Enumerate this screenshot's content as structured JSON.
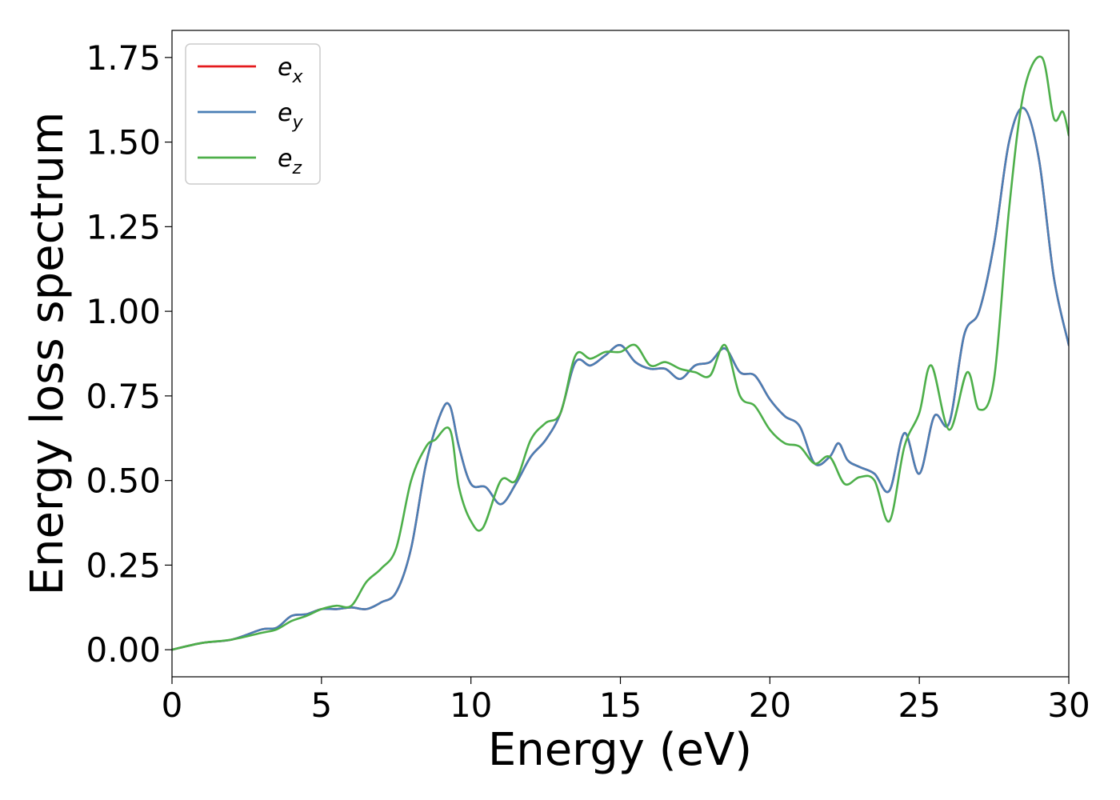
{
  "chart_data": {
    "type": "line",
    "title": "",
    "xlabel": "Energy (eV)",
    "ylabel": "Energy loss spectrum",
    "xlim": [
      0,
      30
    ],
    "ylim": [
      -0.08,
      1.83
    ],
    "xticks": [
      0,
      5,
      10,
      15,
      20,
      25,
      30
    ],
    "yticks": [
      0.0,
      0.25,
      0.5,
      0.75,
      1.0,
      1.25,
      1.5,
      1.75
    ],
    "grid": false,
    "legend": "top-left",
    "series": [
      {
        "name": "e",
        "sub": "x",
        "color": "#e41a1c",
        "x": [
          0,
          1,
          2,
          3,
          3.5,
          4,
          4.5,
          5,
          5.5,
          6,
          6.5,
          7,
          7.5,
          8,
          8.5,
          9,
          9.3,
          9.6,
          10,
          10.5,
          11,
          11.5,
          12,
          12.5,
          13,
          13.5,
          14,
          14.5,
          15,
          15.5,
          16,
          16.5,
          17,
          17.5,
          18,
          18.5,
          19,
          19.5,
          20,
          20.5,
          21,
          21.5,
          22,
          22.3,
          22.6,
          23,
          23.5,
          24,
          24.5,
          25,
          25.5,
          26,
          26.5,
          27,
          27.5,
          28,
          28.5,
          29,
          29.5,
          30
        ],
        "y": [
          0,
          0.02,
          0.03,
          0.06,
          0.065,
          0.1,
          0.105,
          0.12,
          0.12,
          0.125,
          0.12,
          0.14,
          0.17,
          0.3,
          0.55,
          0.7,
          0.72,
          0.6,
          0.49,
          0.48,
          0.43,
          0.49,
          0.57,
          0.62,
          0.7,
          0.85,
          0.84,
          0.87,
          0.9,
          0.85,
          0.83,
          0.83,
          0.8,
          0.84,
          0.85,
          0.89,
          0.82,
          0.81,
          0.74,
          0.69,
          0.66,
          0.55,
          0.57,
          0.61,
          0.56,
          0.54,
          0.52,
          0.47,
          0.64,
          0.52,
          0.69,
          0.67,
          0.93,
          1.0,
          1.2,
          1.5,
          1.6,
          1.45,
          1.1,
          0.9
        ]
      },
      {
        "name": "e",
        "sub": "y",
        "color": "#4a7fb5",
        "x": [
          0,
          1,
          2,
          3,
          3.5,
          4,
          4.5,
          5,
          5.5,
          6,
          6.5,
          7,
          7.5,
          8,
          8.5,
          9,
          9.3,
          9.6,
          10,
          10.5,
          11,
          11.5,
          12,
          12.5,
          13,
          13.5,
          14,
          14.5,
          15,
          15.5,
          16,
          16.5,
          17,
          17.5,
          18,
          18.5,
          19,
          19.5,
          20,
          20.5,
          21,
          21.5,
          22,
          22.3,
          22.6,
          23,
          23.5,
          24,
          24.5,
          25,
          25.5,
          26,
          26.5,
          27,
          27.5,
          28,
          28.5,
          29,
          29.5,
          30
        ],
        "y": [
          0,
          0.02,
          0.03,
          0.06,
          0.065,
          0.1,
          0.105,
          0.12,
          0.12,
          0.125,
          0.12,
          0.14,
          0.17,
          0.3,
          0.55,
          0.7,
          0.72,
          0.6,
          0.49,
          0.48,
          0.43,
          0.49,
          0.57,
          0.62,
          0.7,
          0.85,
          0.84,
          0.87,
          0.9,
          0.85,
          0.83,
          0.83,
          0.8,
          0.84,
          0.85,
          0.89,
          0.82,
          0.81,
          0.74,
          0.69,
          0.66,
          0.55,
          0.57,
          0.61,
          0.56,
          0.54,
          0.52,
          0.47,
          0.64,
          0.52,
          0.69,
          0.67,
          0.93,
          1.0,
          1.2,
          1.5,
          1.6,
          1.45,
          1.1,
          0.9
        ]
      },
      {
        "name": "e",
        "sub": "z",
        "color": "#4daf4a",
        "x": [
          0,
          1,
          2,
          3,
          3.5,
          4,
          4.5,
          5,
          5.5,
          6,
          6.5,
          7,
          7.5,
          8,
          8.5,
          8.8,
          9.3,
          9.6,
          10,
          10.4,
          11,
          11.5,
          12,
          12.5,
          13,
          13.5,
          14,
          14.5,
          15,
          15.5,
          16,
          16.5,
          17,
          17.5,
          18,
          18.5,
          19,
          19.5,
          20,
          20.5,
          21,
          21.5,
          22,
          22.5,
          23,
          23.5,
          24,
          24.5,
          25,
          25.4,
          26,
          26.6,
          27,
          27.5,
          28,
          28.5,
          29.1,
          29.5,
          29.8,
          30
        ],
        "y": [
          0,
          0.02,
          0.03,
          0.05,
          0.06,
          0.085,
          0.1,
          0.12,
          0.13,
          0.13,
          0.2,
          0.24,
          0.3,
          0.5,
          0.6,
          0.62,
          0.65,
          0.48,
          0.38,
          0.36,
          0.5,
          0.5,
          0.62,
          0.67,
          0.7,
          0.87,
          0.86,
          0.88,
          0.88,
          0.9,
          0.84,
          0.85,
          0.83,
          0.82,
          0.81,
          0.9,
          0.75,
          0.72,
          0.65,
          0.61,
          0.6,
          0.55,
          0.57,
          0.49,
          0.51,
          0.5,
          0.38,
          0.6,
          0.7,
          0.84,
          0.65,
          0.82,
          0.71,
          0.8,
          1.3,
          1.65,
          1.75,
          1.57,
          1.59,
          1.52
        ]
      }
    ]
  }
}
